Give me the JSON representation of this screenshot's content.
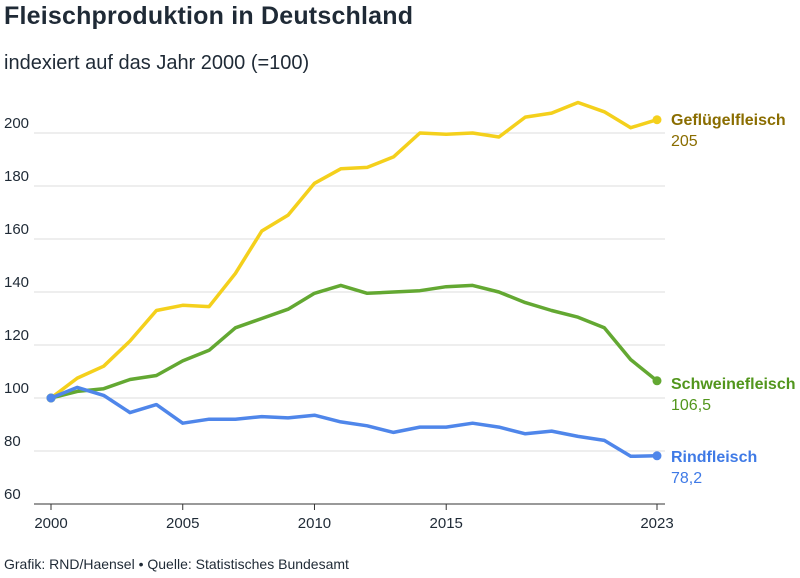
{
  "header": {
    "title": "Fleischproduktion in Deutschland",
    "subtitle": "indexiert auf das Jahr 2000 (=100)"
  },
  "footer": {
    "credit": "Grafik: RND/Haensel • Quelle: Statistisches Bundesamt"
  },
  "chart_data": {
    "type": "line",
    "xlim": [
      2000,
      2023
    ],
    "ylim": [
      60,
      210
    ],
    "x_ticks": [
      2000,
      2005,
      2010,
      2015,
      2023
    ],
    "y_ticks": [
      60,
      80,
      100,
      120,
      140,
      160,
      180,
      200
    ],
    "grid": true,
    "x": [
      2000,
      2001,
      2002,
      2003,
      2004,
      2005,
      2006,
      2007,
      2008,
      2009,
      2010,
      2011,
      2012,
      2013,
      2014,
      2015,
      2016,
      2017,
      2018,
      2019,
      2020,
      2021,
      2022,
      2023
    ],
    "series": [
      {
        "name": "Geflügelfleisch",
        "end_label": "205",
        "color": "#f4d01c",
        "label_color": "#8a6d00",
        "values": [
          100,
          107.5,
          112,
          121.5,
          133,
          135,
          134.5,
          147,
          163,
          169,
          181,
          186.5,
          187,
          191,
          200,
          199.5,
          200,
          198.5,
          206,
          207.5,
          211.5,
          208,
          202,
          205
        ]
      },
      {
        "name": "Schweinefleisch",
        "end_label": "106,5",
        "color": "#63a832",
        "label_color": "#52961d",
        "values": [
          100,
          102.5,
          103.5,
          107,
          108.5,
          114,
          118,
          126.5,
          130,
          133.5,
          139.5,
          142.5,
          139.5,
          140,
          140.5,
          142,
          142.5,
          140,
          136,
          133,
          130.5,
          126.5,
          114.5,
          106.5
        ]
      },
      {
        "name": "Rindfleisch",
        "end_label": "78,2",
        "color": "#4f86ea",
        "label_color": "#3f7ae6",
        "values": [
          100,
          104,
          101,
          94.5,
          97.5,
          90.5,
          92,
          92,
          93,
          92.5,
          93.5,
          91,
          89.5,
          87,
          89,
          89,
          90.5,
          89,
          86.5,
          87.5,
          85.5,
          84,
          78,
          78.2
        ]
      }
    ]
  }
}
